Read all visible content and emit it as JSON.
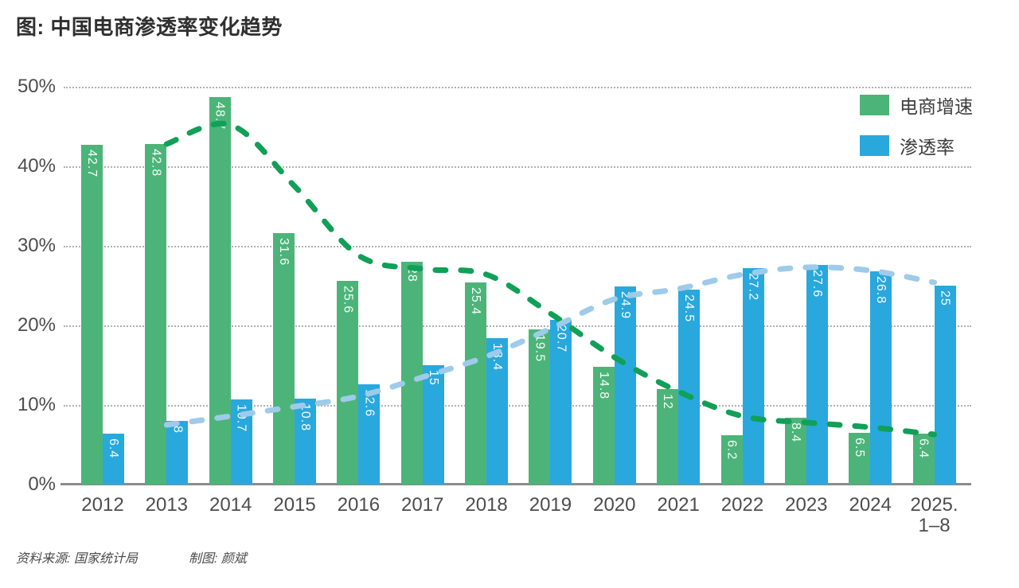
{
  "footer": {
    "source_label": "资料来源: 国家统计局",
    "credit_label": "制图: 颜斌"
  },
  "chart_data": {
    "type": "bar",
    "title": "图: 中国电商渗透率变化趋势",
    "categories": [
      "2012",
      "2013",
      "2014",
      "2015",
      "2016",
      "2017",
      "2018",
      "2019",
      "2020",
      "2021",
      "2022",
      "2023",
      "2024",
      "2025.\n1–8"
    ],
    "ylim": [
      0,
      50
    ],
    "y_ticks": [
      0,
      10,
      20,
      30,
      40,
      50
    ],
    "y_tick_suffix": "%",
    "grid": "horizontal-dotted",
    "legend_position": "top-right",
    "value_labels": "inside-bar-top, rotated 90deg, white",
    "series": [
      {
        "name": "电商增速",
        "type": "bar",
        "color": "#4cb478",
        "values": [
          42.7,
          42.8,
          48.7,
          31.6,
          25.6,
          28,
          25.4,
          19.5,
          14.8,
          12,
          6.2,
          8.4,
          6.5,
          6.4
        ]
      },
      {
        "name": "渗透率",
        "type": "bar",
        "color": "#29a8dd",
        "values": [
          6.4,
          8,
          10.7,
          10.8,
          12.6,
          15,
          18.4,
          20.7,
          24.9,
          24.5,
          27.2,
          27.6,
          26.8,
          25
        ]
      },
      {
        "name": "电商增速趋势线",
        "type": "dashed-line",
        "color": "#10a057",
        "start_index": 1,
        "values": [
          42.8,
          45.2,
          37.5,
          28.8,
          27.1,
          26.4,
          21.5,
          16,
          11.7,
          8.6,
          7.8,
          7.2,
          6.3
        ]
      },
      {
        "name": "渗透率趋势线",
        "type": "dashed-line",
        "color": "#9ecbea",
        "start_index": 1,
        "values": [
          7.5,
          8.6,
          9.8,
          11.1,
          13.5,
          16.1,
          19.6,
          23.3,
          24.6,
          26.4,
          27.3,
          26.9,
          25.4
        ]
      }
    ]
  }
}
